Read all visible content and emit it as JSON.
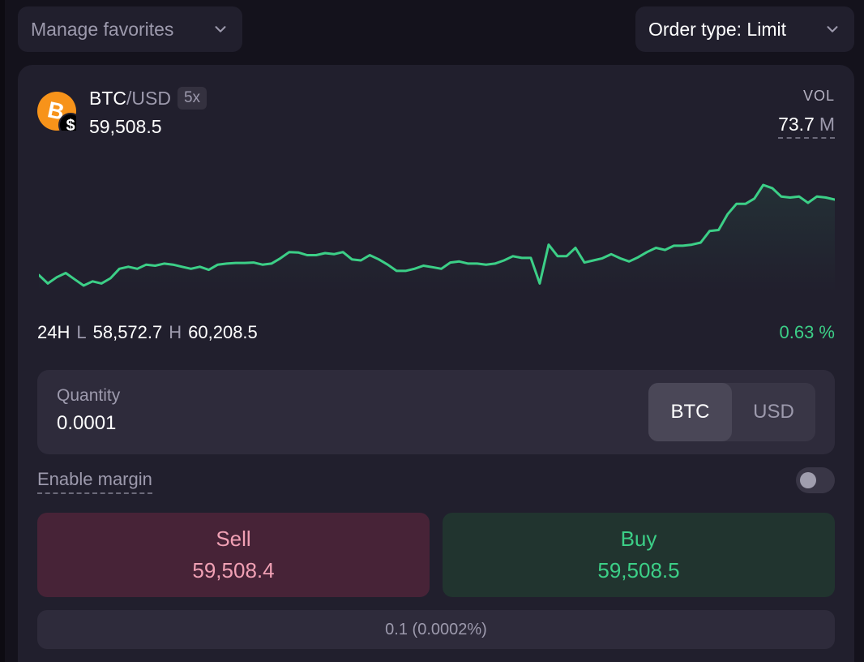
{
  "toolbar": {
    "favorites_label": "Manage favorites",
    "order_type_label": "Order type: Limit"
  },
  "market": {
    "base": "BTC",
    "separator": "/",
    "quote": "USD",
    "leverage": "5x",
    "price": "59,508.5",
    "volume_label": "VOL",
    "volume_value": "73.7",
    "volume_unit": "M",
    "period_label": "24H",
    "low_label": "L",
    "low_value": "58,572.7",
    "high_label": "H",
    "high_value": "60,208.5",
    "change": "0.63 %"
  },
  "chart_data": {
    "type": "line",
    "title": "",
    "xlabel": "",
    "ylabel": "",
    "ylim": [
      58572.7,
      60208.5
    ],
    "grid": false,
    "line_color": "#3ccf87",
    "series": [
      {
        "values": [
          59000,
          58960,
          58990,
          59010,
          58980,
          58950,
          58970,
          58960,
          58985,
          59030,
          59040,
          59030,
          59050,
          59045,
          59055,
          59050,
          59040,
          59030,
          59040,
          59025,
          59050,
          59055,
          59058,
          59058,
          59060,
          59050,
          59055,
          59080,
          59110,
          59108,
          59095,
          59095,
          59105,
          59100,
          59110,
          59075,
          59070,
          59095,
          59075,
          59050,
          59020,
          59020,
          59030,
          59045,
          59038,
          59030,
          59060,
          59065,
          59055,
          59055,
          59050,
          59055,
          59070,
          59090,
          59082,
          59082,
          58960,
          59145,
          59090,
          59090,
          59130,
          59060,
          59070,
          59080,
          59100,
          59080,
          59065,
          59085,
          59110,
          59130,
          59120,
          59140,
          59140,
          59145,
          59155,
          59210,
          59215,
          59290,
          59340,
          59340,
          59365,
          59430,
          59415,
          59375,
          59370,
          59375,
          59345,
          59375,
          59370,
          59360
        ]
      }
    ]
  },
  "order": {
    "quantity_label": "Quantity",
    "quantity_value": "0.0001",
    "unit_options": [
      "BTC",
      "USD"
    ],
    "selected_unit": "BTC",
    "margin_label": "Enable margin",
    "margin_enabled": false,
    "sell_label": "Sell",
    "sell_price": "59,508.4",
    "buy_label": "Buy",
    "buy_price": "59,508.5",
    "spread": "0.1 (0.0002%)"
  },
  "icons": {
    "coin": "bitcoin-icon",
    "quote_badge": "dollar-icon",
    "dropdown": "chevron-down-icon"
  },
  "colors": {
    "bitcoin": "#f7931a",
    "positive": "#3ccf87",
    "sell_bg": "#472337",
    "buy_bg": "#21342f",
    "sell_text": "#f0a0b4"
  }
}
